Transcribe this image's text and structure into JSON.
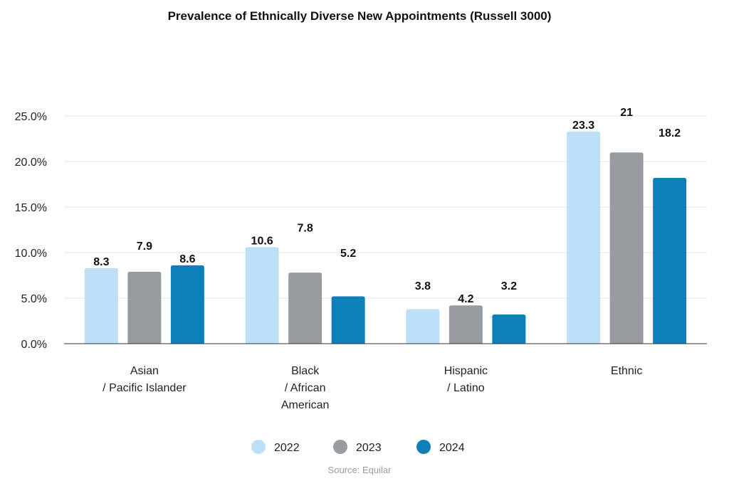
{
  "chart_data": {
    "type": "bar",
    "title": "Prevalence of Ethnically Diverse New Appointments (Russell 3000)",
    "categories": [
      [
        "Asian",
        "/ Pacific Islander"
      ],
      [
        "Black",
        "/ African",
        "American"
      ],
      [
        "Hispanic",
        "/ Latino"
      ],
      [
        "Ethnic"
      ]
    ],
    "series": [
      {
        "name": "2022",
        "color": "#bde0f6",
        "values": [
          8.3,
          10.6,
          3.8,
          23.3
        ],
        "labels": [
          "8.3",
          "10.6",
          "3.8",
          "23.3"
        ]
      },
      {
        "name": "2023",
        "color": "#969c9f",
        "values": [
          7.9,
          7.8,
          4.2,
          21
        ],
        "labels": [
          "7.9",
          "7.8",
          "4.2",
          "21"
        ]
      },
      {
        "name": "2024",
        "color": "#0d80ba",
        "values": [
          8.6,
          5.2,
          3.2,
          18.2
        ],
        "labels": [
          "8.6",
          "5.2",
          "3.2",
          "18.2"
        ]
      }
    ],
    "yticks": [
      "0.0%",
      "5.0%",
      "10.0%",
      "15.0%",
      "20.0%",
      "25.0%"
    ],
    "ytick_values": [
      0,
      5,
      10,
      15,
      20,
      25
    ],
    "ylim": [
      0,
      25
    ],
    "xlabel": "",
    "ylabel": "",
    "grid": true,
    "legend_position": "bottom",
    "source": "Source: Equilar"
  }
}
